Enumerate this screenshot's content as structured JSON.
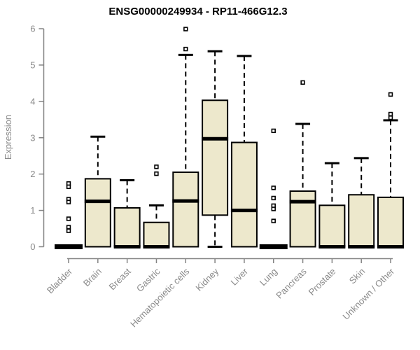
{
  "chart_data": {
    "type": "boxplot",
    "title": "ENSG00000249934 - RP11-466G12.3",
    "xlabel": "",
    "ylabel": "Expression",
    "ylim": [
      0,
      6
    ],
    "ytick_step": 1,
    "y_tick_labels": [
      "0",
      "1",
      "2",
      "3",
      "4",
      "5",
      "6"
    ],
    "grid": false,
    "legend": "none",
    "categories": [
      "Bladder",
      "Brain",
      "Breast",
      "Gastric",
      "Hematopoietic cells",
      "Kidney",
      "Liver",
      "Lung",
      "Pancreas",
      "Prostate",
      "Skin",
      "Unknown / Other"
    ],
    "series": [
      {
        "category": "Bladder",
        "whisker_low": 0,
        "q1": 0,
        "median": 0,
        "q3": 0,
        "whisker_high": 0,
        "outliers": [
          1.74,
          1.65,
          1.31,
          1.23,
          0.77,
          0.54,
          0.44
        ]
      },
      {
        "category": "Brain",
        "whisker_low": 0,
        "q1": 0,
        "median": 1.25,
        "q3": 1.87,
        "whisker_high": 3.03,
        "outliers": []
      },
      {
        "category": "Breast",
        "whisker_low": 0,
        "q1": 0,
        "median": 0,
        "q3": 1.07,
        "whisker_high": 1.83,
        "outliers": []
      },
      {
        "category": "Gastric",
        "whisker_low": 0,
        "q1": 0,
        "median": 0,
        "q3": 0.67,
        "whisker_high": 1.14,
        "outliers": [
          2.2,
          2.01
        ]
      },
      {
        "category": "Hematopoietic cells",
        "whisker_low": 0,
        "q1": 0,
        "median": 1.26,
        "q3": 2.05,
        "whisker_high": 5.28,
        "outliers": [
          5.99,
          5.44
        ]
      },
      {
        "category": "Kidney",
        "whisker_low": 0,
        "q1": 0.87,
        "median": 2.97,
        "q3": 4.03,
        "whisker_high": 5.38,
        "outliers": []
      },
      {
        "category": "Liver",
        "whisker_low": 0,
        "q1": 0,
        "median": 1.0,
        "q3": 2.87,
        "whisker_high": 5.25,
        "outliers": []
      },
      {
        "category": "Lung",
        "whisker_low": 0,
        "q1": 0,
        "median": 0,
        "q3": 0,
        "whisker_high": 0,
        "outliers": [
          3.19,
          1.62,
          1.34,
          1.13,
          1.04,
          0.71
        ]
      },
      {
        "category": "Pancreas",
        "whisker_low": 0,
        "q1": 0,
        "median": 1.24,
        "q3": 1.53,
        "whisker_high": 3.38,
        "outliers": [
          4.52
        ]
      },
      {
        "category": "Prostate",
        "whisker_low": 0,
        "q1": 0,
        "median": 0,
        "q3": 1.14,
        "whisker_high": 2.3,
        "outliers": []
      },
      {
        "category": "Skin",
        "whisker_low": 0,
        "q1": 0,
        "median": 0,
        "q3": 1.43,
        "whisker_high": 2.44,
        "outliers": []
      },
      {
        "category": "Unknown / Other",
        "whisker_low": 0,
        "q1": 0,
        "median": 0,
        "q3": 1.36,
        "whisker_high": 3.48,
        "outliers": [
          4.19,
          3.65,
          3.55
        ]
      }
    ],
    "colors": {
      "box_fill": "#ede8cc",
      "box_stroke": "#000000",
      "median": "#000000",
      "whisker": "#000000",
      "outlier_stroke": "#000000",
      "outlier_fill": "#ffffff",
      "axis": "#848484",
      "tick_label": "#8a8a8a",
      "title": "#000000"
    }
  }
}
